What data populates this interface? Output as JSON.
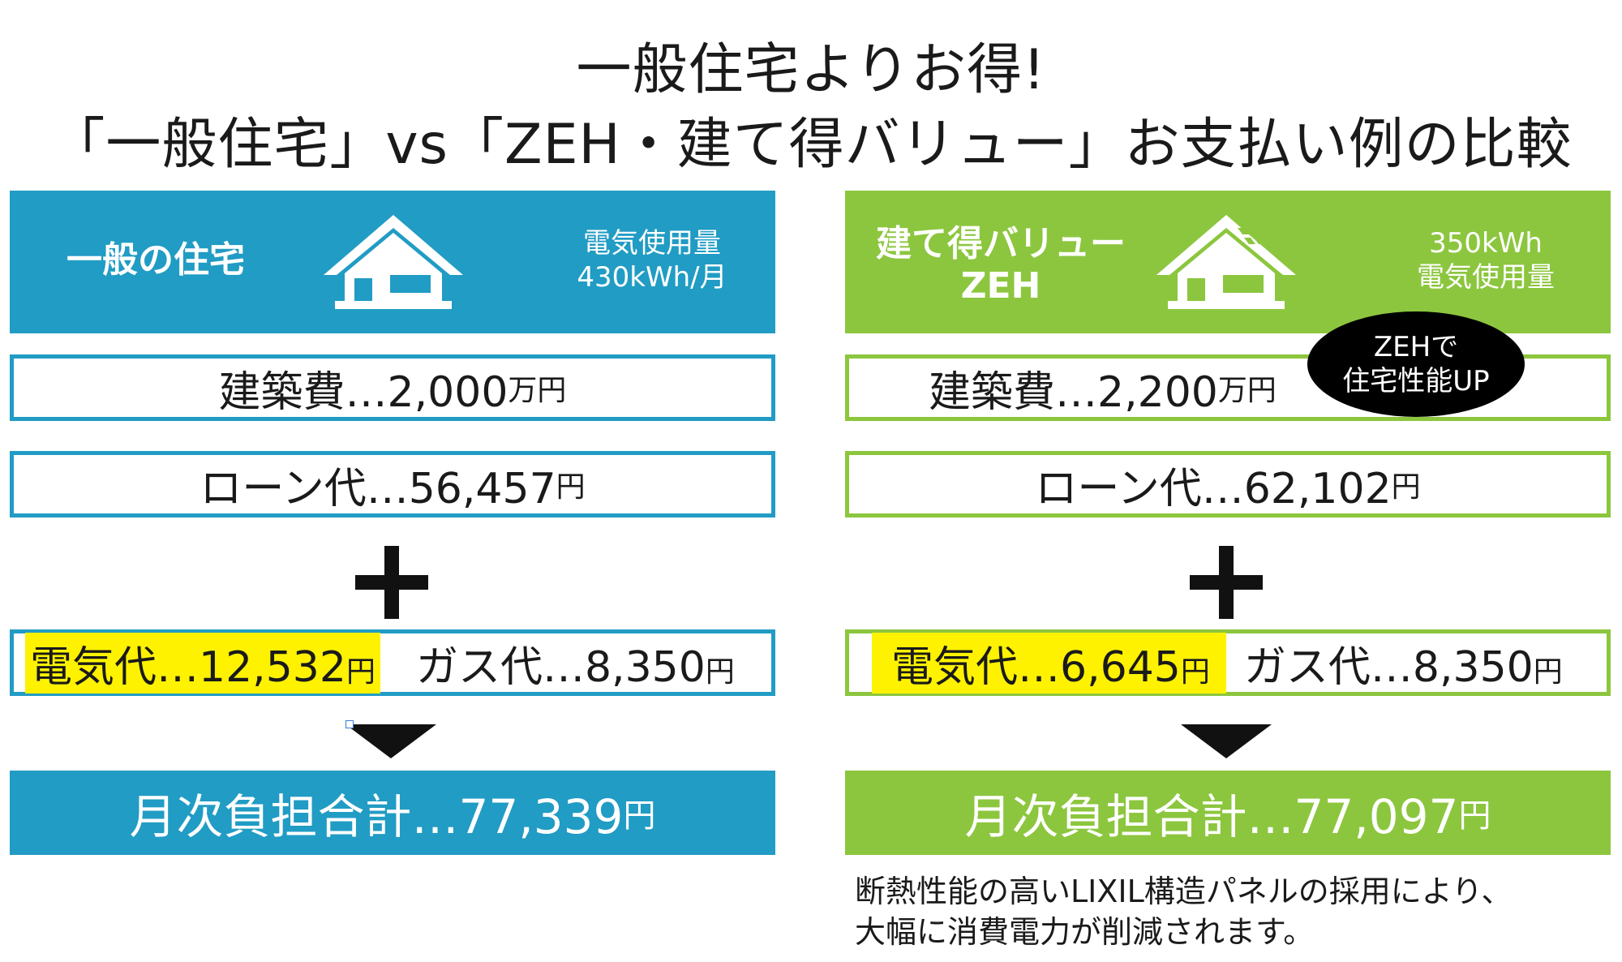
{
  "title_line1": "一般住宅よりお得!",
  "title_line2": "「一般住宅」vs「ZEH・建て得バリュー」お支払い例の比較",
  "left": {
    "header_name": "一般の住宅",
    "usage_label": "電気使用量",
    "usage_value": "430kWh/月",
    "building_cost_label": "建築費…2,000",
    "building_cost_unit": "万円",
    "loan_label": "ローン代…56,457",
    "loan_unit": "円",
    "electric_label": "電気代…12,532",
    "electric_unit": "円",
    "gas_label": "ガス代…8,350",
    "gas_unit": "円",
    "total_label": "月次負担合計…77,339",
    "total_unit": "円",
    "color": "#219cc4"
  },
  "right": {
    "header_name_line1": "建て得バリュー",
    "header_name_line2": "ZEH",
    "usage_value": "350kWh",
    "usage_label": "電気使用量",
    "building_cost_label": "建築費…2,200",
    "building_cost_unit": "万円",
    "loan_label": "ローン代…62,102",
    "loan_unit": "円",
    "electric_label": "電気代…6,645",
    "electric_unit": "円",
    "gas_label": "ガス代…8,350",
    "gas_unit": "円",
    "total_label": "月次負担合計…77,097",
    "total_unit": "円",
    "color": "#8cc63e",
    "badge_line1": "ZEHで",
    "badge_line2": "住宅性能UP"
  },
  "note_line1": "断熱性能の高いLIXIL構造パネルの採用により、",
  "note_line2": "大幅に消費電力が削減されます。",
  "icons": [
    "house-icon",
    "solar-house-icon",
    "plus-icon",
    "down-arrow-icon"
  ],
  "highlight_color": "#fff200"
}
